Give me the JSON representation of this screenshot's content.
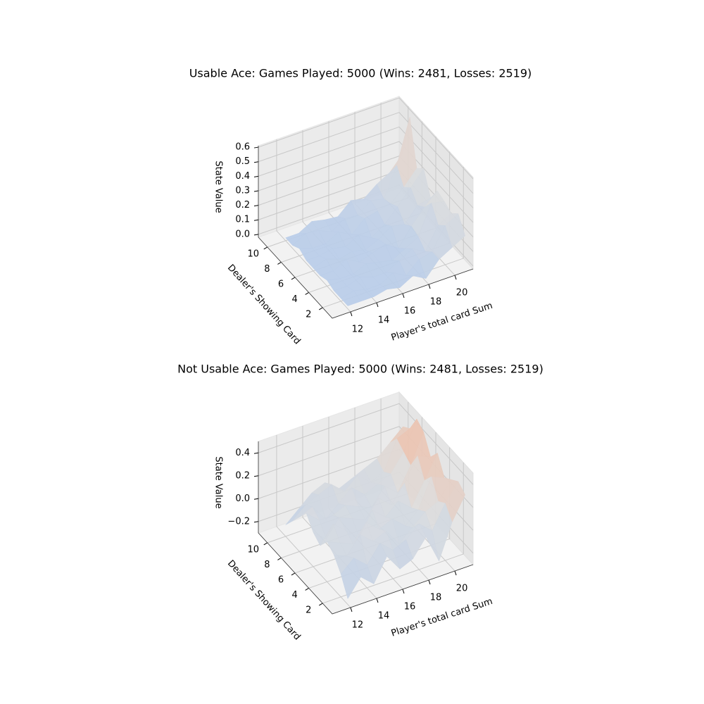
{
  "chart_data": [
    {
      "type": "surface",
      "title": "Usable Ace: Games Played: 5000 (Wins: 2481, Losses: 2519)",
      "xlabel": "Player's total card Sum",
      "ylabel": "Dealer's Showing Card",
      "zlabel": "State Value",
      "x": [
        12,
        13,
        14,
        15,
        16,
        17,
        18,
        19,
        20,
        21
      ],
      "y": [
        1,
        2,
        3,
        4,
        5,
        6,
        7,
        8,
        9,
        10
      ],
      "z": [
        [
          0,
          0,
          0,
          0.02,
          0,
          0.05,
          0,
          0.1,
          0.15,
          0.2
        ],
        [
          0,
          0.02,
          0,
          0,
          0.05,
          0,
          0.08,
          0.1,
          0.25,
          0.3
        ],
        [
          0,
          0,
          0.03,
          0,
          0,
          0.05,
          0.1,
          0.05,
          0.2,
          0.25
        ],
        [
          0.02,
          0,
          0,
          0.04,
          0.02,
          0,
          0.05,
          0.1,
          0.3,
          0.28
        ],
        [
          0,
          0,
          0.05,
          0,
          0.03,
          0.06,
          0,
          0.12,
          0.22,
          0.3
        ],
        [
          0,
          0.03,
          0,
          0.02,
          0,
          0.04,
          0.1,
          0.08,
          0.18,
          0.2
        ],
        [
          0,
          0,
          0.02,
          0,
          0.05,
          0,
          0.06,
          0.15,
          0.25,
          0.35
        ],
        [
          0.03,
          0,
          0,
          0.05,
          0,
          0.08,
          0.1,
          0.12,
          0.2,
          0.3
        ],
        [
          0,
          0.05,
          0.04,
          0,
          0.06,
          0.05,
          0.12,
          0.1,
          0.3,
          0.6
        ],
        [
          0,
          0,
          0.05,
          0.03,
          0.02,
          0.1,
          0.08,
          0.15,
          0.2,
          0.3
        ]
      ],
      "xlim": [
        10.6,
        21.4
      ],
      "ylim": [
        0.6,
        11.3
      ],
      "zlim": [
        -0.02,
        0.61
      ],
      "xticks": [
        12,
        14,
        16,
        18,
        20
      ],
      "yticks": [
        2,
        4,
        6,
        8,
        10
      ],
      "zticks": [
        {
          "value": 0,
          "label": "0.0"
        },
        0.1,
        0.2,
        0.3,
        0.4,
        0.5,
        0.6
      ],
      "colormap": [
        "#b9cde9",
        "#dddddd",
        "#f5b597"
      ]
    },
    {
      "type": "surface",
      "title": "Not Usable Ace: Games Played: 5000 (Wins: 2481, Losses: 2519)",
      "xlabel": "Player's total card Sum",
      "ylabel": "Dealer's Showing Card",
      "zlabel": "State Value",
      "x": [
        12,
        13,
        14,
        15,
        16,
        17,
        18,
        19,
        20,
        21
      ],
      "y": [
        1,
        2,
        3,
        4,
        5,
        6,
        7,
        8,
        9,
        10
      ],
      "z": [
        [
          -0.25,
          -0.1,
          -0.2,
          0,
          -0.15,
          -0.1,
          0.05,
          -0.2,
          0.1,
          0.3
        ],
        [
          -0.1,
          0,
          -0.1,
          0.05,
          -0.05,
          0,
          0.1,
          0,
          0.2,
          0.35
        ],
        [
          0,
          -0.05,
          0.1,
          0,
          0.05,
          -0.1,
          0,
          0.1,
          0.15,
          0.3
        ],
        [
          0.05,
          0,
          -0.05,
          0.1,
          0,
          0.05,
          -0.05,
          0.05,
          0.3,
          0.25
        ],
        [
          -0.05,
          0.1,
          0,
          -0.1,
          0.1,
          0,
          0.1,
          0,
          0.2,
          0.4
        ],
        [
          0,
          -0.1,
          0.05,
          0,
          -0.05,
          0.1,
          0,
          0.15,
          0.35,
          0.3
        ],
        [
          0.1,
          0,
          0,
          0.05,
          0,
          -0.05,
          0.1,
          0,
          0.2,
          0.45
        ],
        [
          0,
          0.05,
          -0.1,
          0,
          0.1,
          0,
          0.05,
          0.1,
          0.25,
          0.5
        ],
        [
          -0.1,
          0,
          0.05,
          0.1,
          0,
          0.1,
          0,
          0.05,
          0.3,
          0.35
        ],
        [
          -0.2,
          -0.1,
          0,
          0.05,
          -0.05,
          0,
          0.05,
          0.1,
          0.2,
          0.3
        ]
      ],
      "xlim": [
        10.6,
        21.4
      ],
      "ylim": [
        0.6,
        11.3
      ],
      "zlim": [
        -0.3,
        0.5
      ],
      "xticks": [
        12,
        14,
        16,
        18,
        20
      ],
      "yticks": [
        2,
        4,
        6,
        8,
        10
      ],
      "zticks": [
        {
          "value": -0.2,
          "label": "−0.2"
        },
        {
          "value": 0,
          "label": "0.0"
        },
        0.2,
        0.4
      ],
      "colormap": [
        "#b9cde9",
        "#dddddd",
        "#f5b597"
      ]
    }
  ]
}
